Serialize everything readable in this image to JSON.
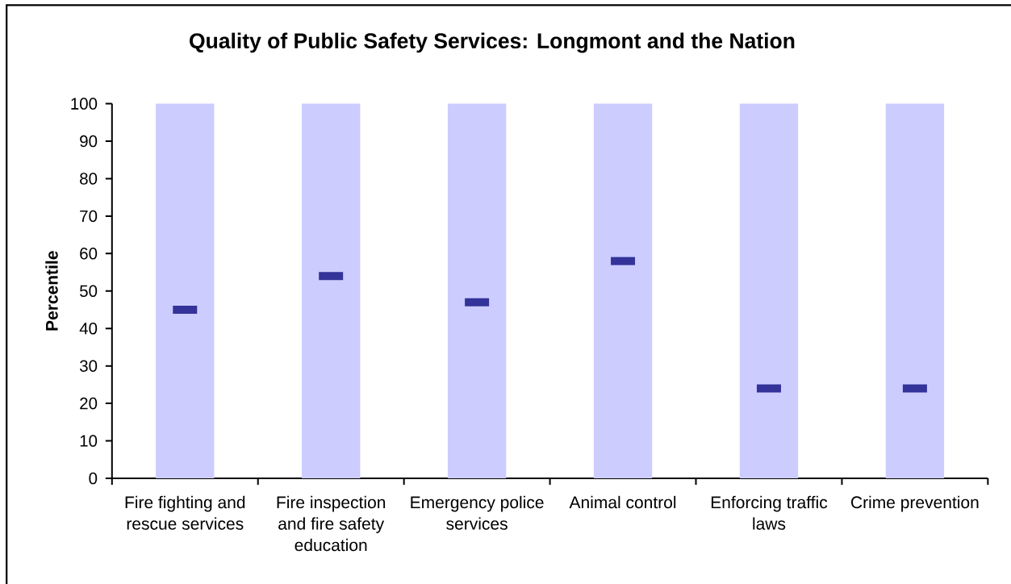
{
  "chart_data": {
    "type": "bar",
    "title": "Quality of Public Safety Services: Longmont and the Nation",
    "ylabel": "Percentile",
    "categories": [
      "Fire fighting and rescue services",
      "Fire inspection and fire safety education",
      "Emergency police services",
      "Animal control",
      "Enforcing traffic laws",
      "Crime prevention"
    ],
    "series": [
      {
        "color": "#ccccff",
        "values": [
          100,
          100,
          100,
          100,
          100,
          100
        ]
      },
      {
        "type": "scatter",
        "color": "#333399",
        "marker": "square",
        "values": [
          45,
          54,
          47,
          58,
          24,
          24
        ]
      }
    ],
    "ylim": [
      0,
      100
    ],
    "yticks": [
      0,
      10,
      20,
      30,
      40,
      50,
      60,
      70,
      80,
      90,
      100
    ]
  }
}
